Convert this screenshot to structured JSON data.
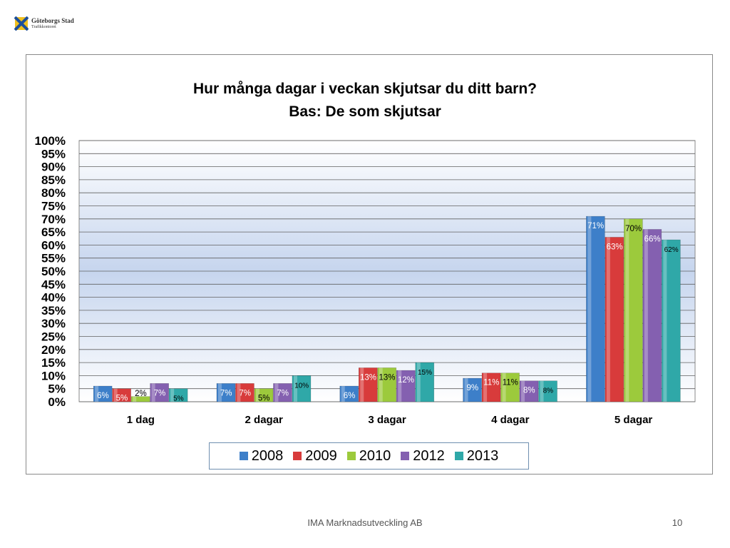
{
  "logo": {
    "name": "Göteborgs Stad",
    "subtitle": "Trafikkontoret"
  },
  "footer": {
    "company": "IMA Marknadsutveckling AB",
    "page_number": "10"
  },
  "chart_data": {
    "type": "bar",
    "title": "Hur många dagar i veckan skjutsar du ditt barn?",
    "subtitle": "Bas: De som skjutsar",
    "categories": [
      "1 dag",
      "2 dagar",
      "3 dagar",
      "4 dagar",
      "5 dagar"
    ],
    "series": [
      {
        "name": "2008",
        "color": "#3d7fc9",
        "values": [
          6,
          7,
          6,
          9,
          71
        ],
        "labels": [
          "6%",
          "7%",
          "6%",
          "9%",
          "71%"
        ],
        "label_color": "#ffffff"
      },
      {
        "name": "2009",
        "color": "#d83b3b",
        "values": [
          5,
          7,
          13,
          11,
          63
        ],
        "labels": [
          "5%",
          "7%",
          "13%",
          "11%",
          "63%"
        ],
        "label_color": "#ffffff"
      },
      {
        "name": "2010",
        "color": "#9cca3c",
        "values": [
          2,
          5,
          13,
          11,
          70
        ],
        "labels": [
          "2%",
          "5%",
          "13%",
          "11%",
          "70%"
        ],
        "label_color": "#000000"
      },
      {
        "name": "2012",
        "color": "#8460b0",
        "values": [
          7,
          7,
          12,
          8,
          66
        ],
        "labels": [
          "7%",
          "7%",
          "12%",
          "8%",
          "66%"
        ],
        "label_color": "#ffffff"
      },
      {
        "name": "2013",
        "color": "#2fa8a8",
        "values": [
          5,
          10,
          15,
          8,
          62
        ],
        "labels": [
          "5%",
          "10%",
          "15%",
          "8%",
          "62%"
        ],
        "label_color": "#000000"
      }
    ],
    "yticks": [
      "0%",
      "5%",
      "10%",
      "15%",
      "20%",
      "25%",
      "30%",
      "35%",
      "40%",
      "45%",
      "50%",
      "55%",
      "60%",
      "65%",
      "70%",
      "75%",
      "80%",
      "85%",
      "90%",
      "95%",
      "100%"
    ],
    "ylim": [
      0,
      100
    ],
    "grid": true,
    "legend_position": "bottom"
  }
}
